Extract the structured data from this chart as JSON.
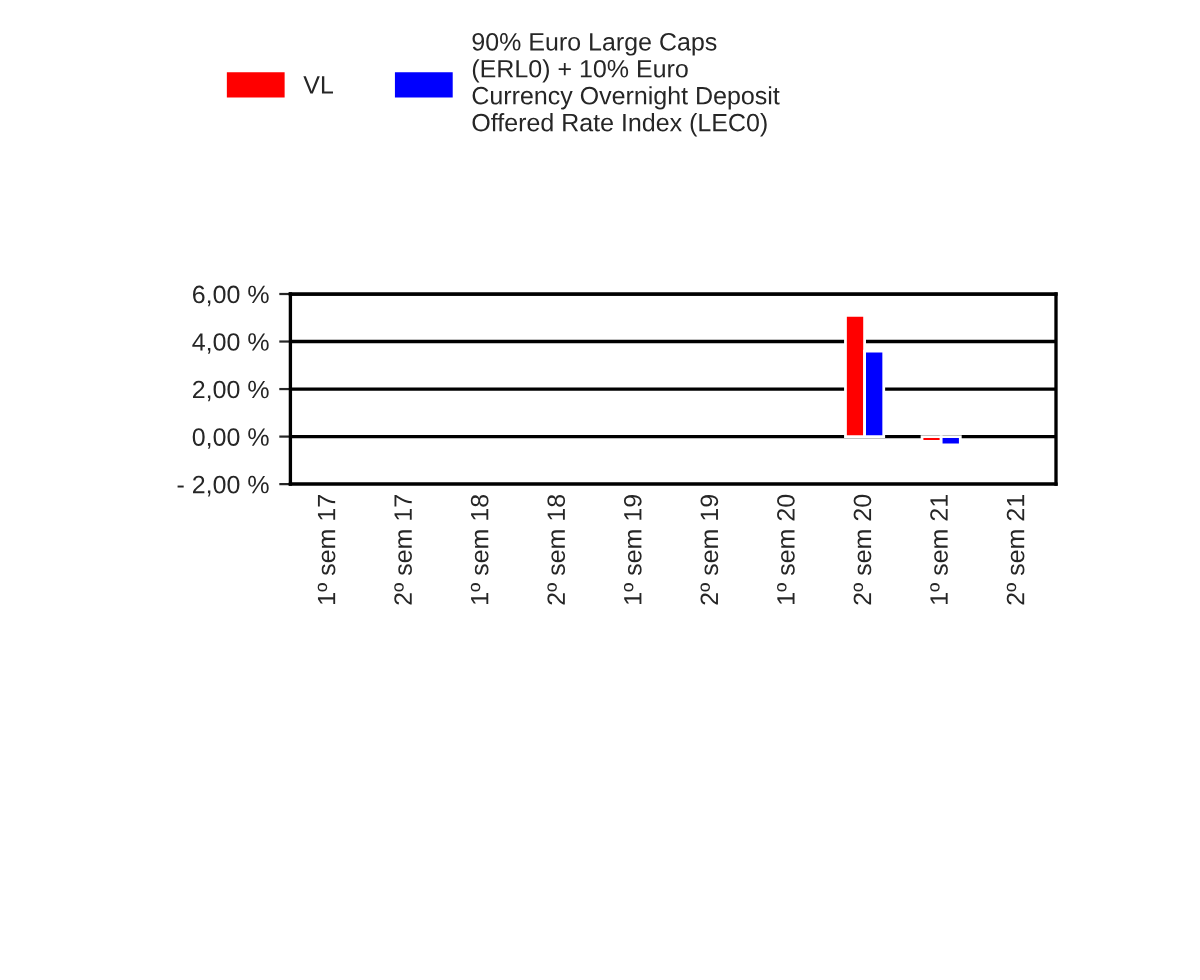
{
  "chart_data": {
    "type": "bar",
    "categories": [
      "1º sem 17",
      "2º sem 17",
      "1º sem 18",
      "2º sem 18",
      "1º sem 19",
      "2º sem 19",
      "1º sem 20",
      "2º sem 20",
      "1º sem 21",
      "2º sem 21"
    ],
    "series": [
      {
        "name": "VL",
        "color": "#ff0000",
        "values": [
          null,
          null,
          null,
          null,
          null,
          null,
          null,
          5.1,
          -0.2,
          null
        ]
      },
      {
        "name": "90% Euro Large Caps\n(ERL0) + 10% Euro\nCurrency Overnight Deposit\nOffered Rate Index (LEC0)",
        "color": "#0000ff",
        "values": [
          null,
          null,
          null,
          null,
          null,
          null,
          null,
          3.6,
          -0.35,
          null
        ]
      }
    ],
    "ylim": [
      -2,
      6
    ],
    "yticks": [
      {
        "value": -2,
        "label": "- 2,00 %"
      },
      {
        "value": 0,
        "label": "0,00 %"
      },
      {
        "value": 2,
        "label": "2,00 %"
      },
      {
        "value": 4,
        "label": "4,00 %"
      },
      {
        "value": 6,
        "label": "6,00 %"
      }
    ],
    "grid": "y",
    "legend": "top"
  }
}
